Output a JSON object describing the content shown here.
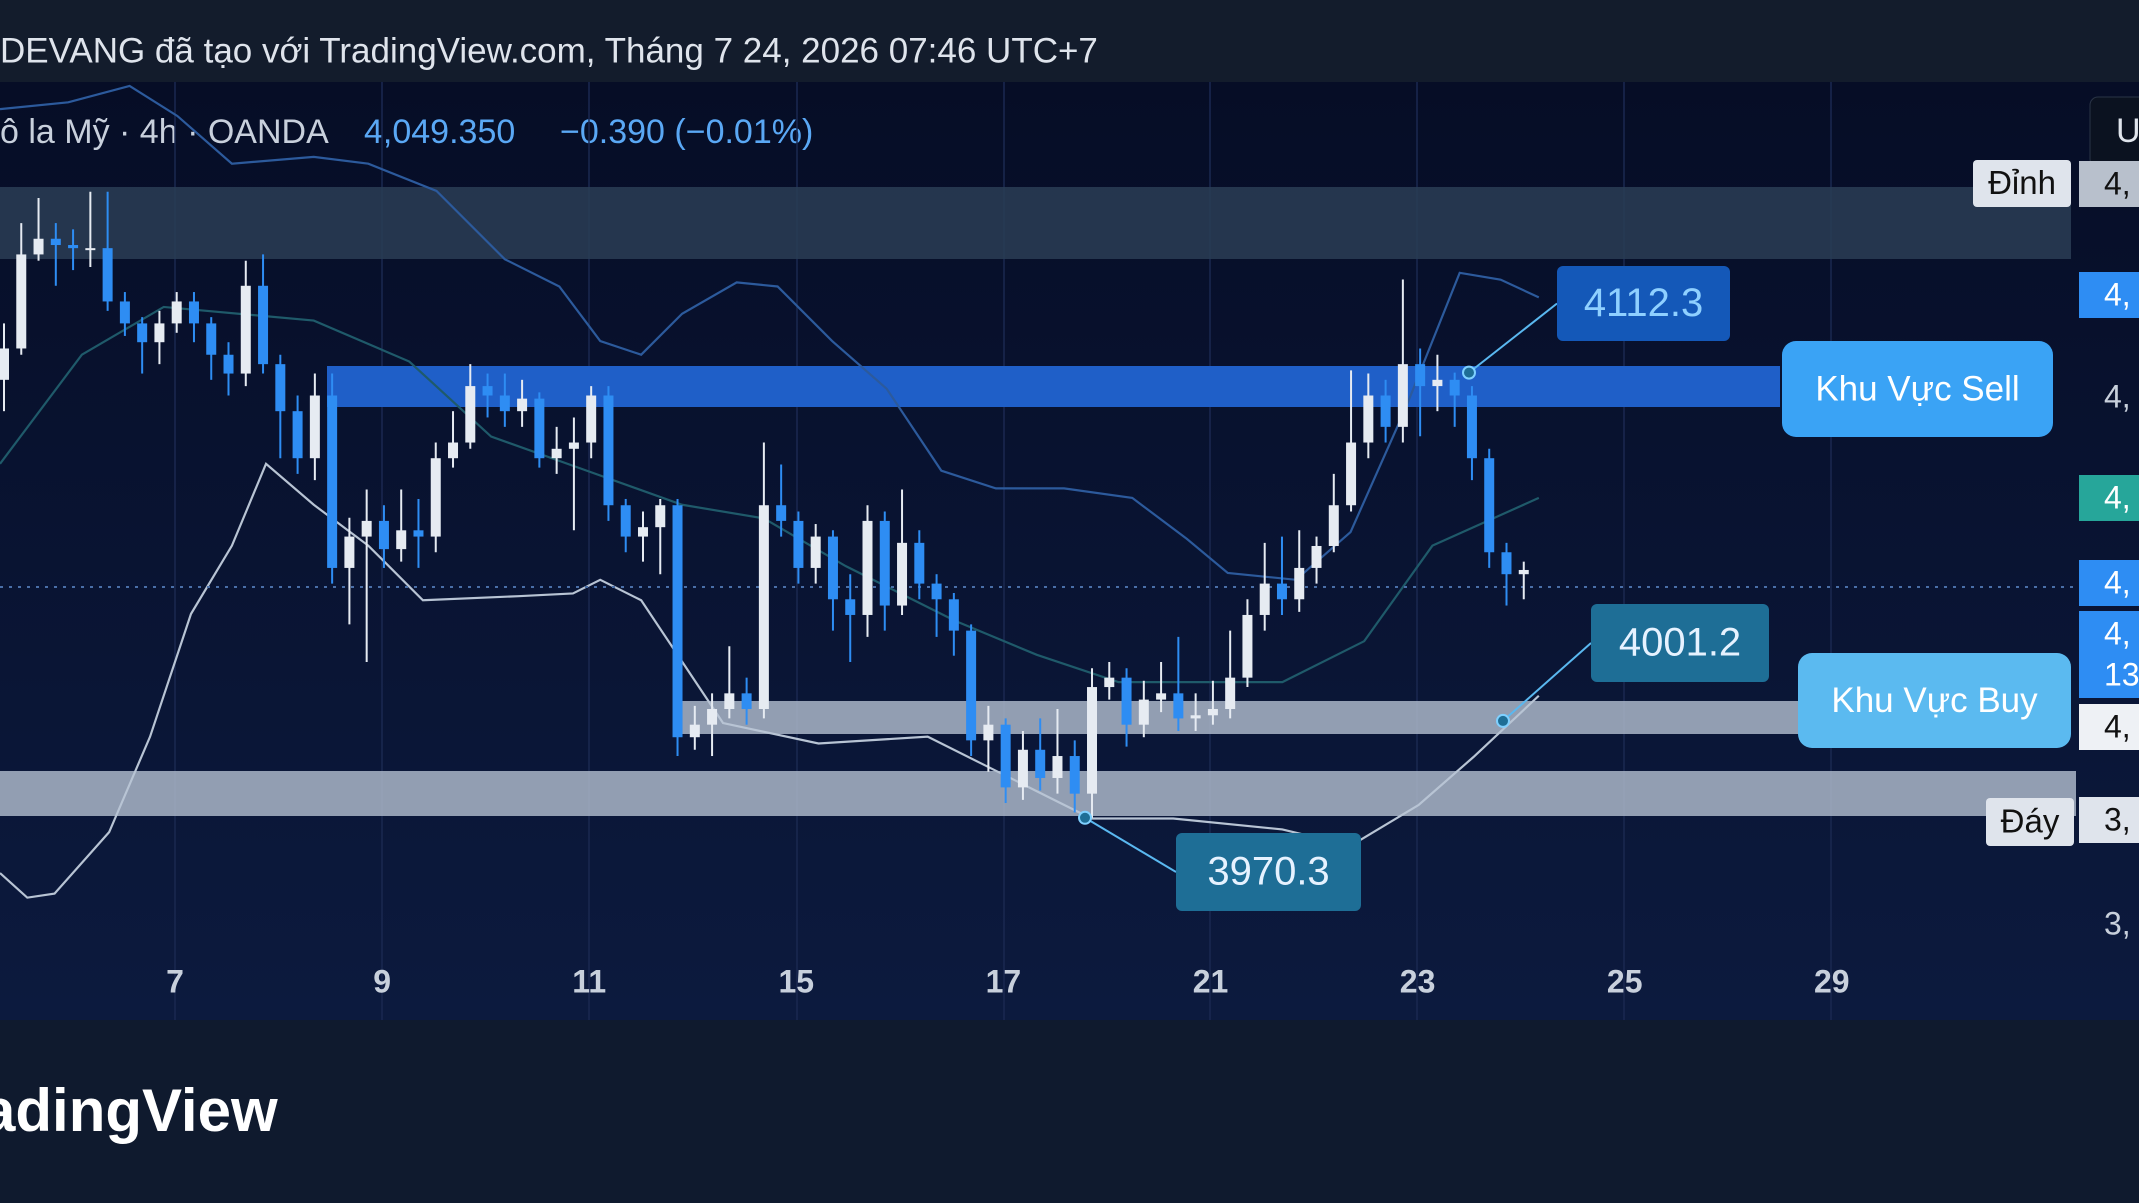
{
  "header": {
    "title": "DEVANG đã tạo với TradingView.com, Tháng 7 24, 2026 07:46 UTC+7",
    "symbol": "ô la Mỹ · 4h · OANDA",
    "price": "4,049.350",
    "change": "−0.390 (−0.01%)",
    "corner": "U"
  },
  "chart_data": {
    "type": "candlestick",
    "up_color": "#e6ebf2",
    "down_color": "#2e8df3",
    "ylim": [
      3931,
      4205
    ],
    "x_labels": [
      "7",
      "9",
      "11",
      "15",
      "17",
      "21",
      "23",
      "25",
      "29"
    ],
    "open": [
      4110,
      4120,
      4150,
      4155,
      4153,
      4152,
      4152,
      4135,
      4128,
      4122,
      4128,
      4135,
      4128,
      4118,
      4112,
      4140,
      4115,
      4100,
      4085,
      4105,
      4050,
      4060,
      4065,
      4056,
      4062,
      4060,
      4085,
      4090,
      4108,
      4105,
      4100,
      4104,
      4085,
      4088,
      4090,
      4105,
      4070,
      4060,
      4063,
      4070,
      3996,
      4000,
      4005,
      4010,
      4005,
      4070,
      4065,
      4050,
      4060,
      4040,
      4035,
      4065,
      4038,
      4058,
      4045,
      4040,
      4030,
      3995,
      4000,
      3980,
      3992,
      3983,
      3990,
      3978,
      4012,
      4015,
      4000,
      4008,
      4010,
      4002,
      4003,
      4005,
      4015,
      4035,
      4045,
      4040,
      4050,
      4057,
      4070,
      4090,
      4105,
      4095,
      4115,
      4108,
      4110,
      4105,
      4085,
      4055,
      4048
    ],
    "high": [
      4128,
      4160,
      4168,
      4160,
      4158,
      4170,
      4170,
      4138,
      4130,
      4132,
      4138,
      4138,
      4130,
      4122,
      4148,
      4150,
      4118,
      4105,
      4112,
      4112,
      4066,
      4075,
      4070,
      4075,
      4072,
      4090,
      4100,
      4115,
      4112,
      4112,
      4110,
      4106,
      4095,
      4098,
      4108,
      4108,
      4072,
      4068,
      4072,
      4072,
      4006,
      4010,
      4025,
      4015,
      4090,
      4083,
      4068,
      4064,
      4062,
      4048,
      4070,
      4068,
      4075,
      4062,
      4048,
      4042,
      4032,
      4006,
      4002,
      3998,
      4002,
      4005,
      3995,
      4018,
      4020,
      4018,
      4014,
      4020,
      4028,
      4010,
      4014,
      4030,
      4040,
      4058,
      4060,
      4062,
      4060,
      4080,
      4113,
      4112,
      4110,
      4142,
      4120,
      4118,
      4112.3,
      4108,
      4088,
      4058,
      4052
    ],
    "low": [
      4100,
      4118,
      4148,
      4140,
      4145,
      4146,
      4132,
      4124,
      4112,
      4115,
      4125,
      4122,
      4110,
      4105,
      4108,
      4112,
      4085,
      4080,
      4078,
      4045,
      4032,
      4020,
      4050,
      4052,
      4050,
      4055,
      4082,
      4088,
      4098,
      4095,
      4095,
      4082,
      4080,
      4062,
      4085,
      4065,
      4055,
      4052,
      4048,
      3990,
      3992,
      3990,
      4002,
      4000,
      4002,
      4060,
      4045,
      4045,
      4030,
      4020,
      4028,
      4030,
      4035,
      4040,
      4028,
      4022,
      3990,
      3985,
      3975,
      3976,
      3979,
      3978,
      3972,
      3970.3,
      4008,
      3993,
      3996,
      4004,
      3998,
      3998,
      4000,
      4002,
      4012,
      4030,
      4035,
      4036,
      4045,
      4055,
      4068,
      4085,
      4090,
      4090,
      4092,
      4100,
      4095,
      4078,
      4050,
      4038,
      4040
    ],
    "close": [
      4120,
      4150,
      4155,
      4153,
      4152,
      4152,
      4135,
      4128,
      4122,
      4128,
      4135,
      4128,
      4118,
      4112,
      4140,
      4115,
      4100,
      4085,
      4105,
      4050,
      4060,
      4065,
      4056,
      4062,
      4060,
      4085,
      4090,
      4108,
      4105,
      4100,
      4104,
      4085,
      4088,
      4090,
      4105,
      4070,
      4060,
      4063,
      4070,
      3996,
      4000,
      4005,
      4010,
      4005,
      4070,
      4065,
      4050,
      4060,
      4040,
      4035,
      4065,
      4038,
      4058,
      4045,
      4040,
      4030,
      3995,
      4000,
      3980,
      3992,
      3983,
      3990,
      3978,
      4012,
      4015,
      4000,
      4008,
      4010,
      4002,
      4003,
      4005,
      4015,
      4035,
      4045,
      4040,
      4050,
      4057,
      4070,
      4090,
      4105,
      4095,
      4115,
      4108,
      4110,
      4105,
      4085,
      4055,
      4048,
      4049.35
    ],
    "zones": [
      {
        "label": "Khu Vực Sell"
      },
      {
        "label": "Khu Vực Buy"
      }
    ],
    "annotations": [
      {
        "value": 4112.3
      },
      {
        "value": 4001.2
      },
      {
        "value": 3970.3
      }
    ],
    "extreme_labels": [
      "Đỉnh",
      "Đáy"
    ],
    "price_tags": [
      "4,",
      "4,",
      "4,",
      "4,",
      "4,",
      "4,",
      "13",
      "4,",
      "3,",
      "3,"
    ]
  },
  "footer": {
    "logo": "adingView"
  }
}
